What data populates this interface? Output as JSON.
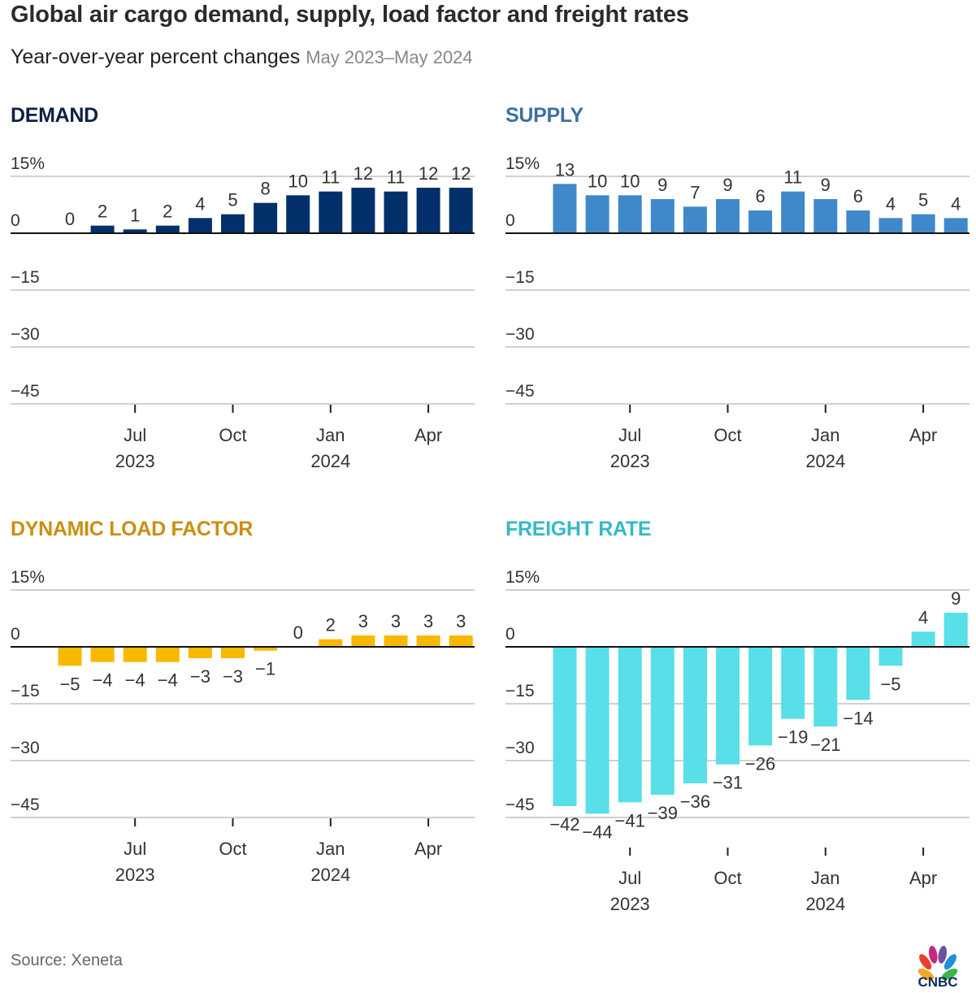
{
  "header": {
    "title": "Global air cargo demand, supply, load factor and freight rates",
    "subtitle": "Year-over-year percent changes",
    "date_range": "May 2023–May 2024"
  },
  "footer": {
    "source": "Source: Xeneta",
    "logo": "CNBC"
  },
  "chart_data": [
    {
      "type": "bar",
      "title": "DEMAND",
      "title_color": "#0d2244",
      "bar_color": "#03306b",
      "months": [
        "May 2023",
        "Jun 2023",
        "Jul 2023",
        "Aug 2023",
        "Sep 2023",
        "Oct 2023",
        "Nov 2023",
        "Dec 2023",
        "Jan 2024",
        "Feb 2024",
        "Mar 2024",
        "Apr 2024",
        "May 2024"
      ],
      "values": [
        0,
        2,
        1,
        2,
        4,
        5,
        8,
        10,
        11,
        12,
        11,
        12,
        12
      ],
      "yticks": [
        "15%",
        "0",
        "−15",
        "−30",
        "−45"
      ],
      "ytick_values": [
        15,
        0,
        -15,
        -30,
        -45
      ],
      "ylim": [
        -45,
        15
      ],
      "xticks": [
        {
          "label": "Jul",
          "year": "2023",
          "index": 2
        },
        {
          "label": "Oct",
          "year": "",
          "index": 5
        },
        {
          "label": "Jan",
          "year": "2024",
          "index": 8
        },
        {
          "label": "Apr",
          "year": "",
          "index": 11
        }
      ],
      "xlabel": "",
      "ylabel": "",
      "grid": true
    },
    {
      "type": "bar",
      "title": "SUPPLY",
      "title_color": "#3d6fa3",
      "bar_color": "#3f88c9",
      "months": [
        "May 2023",
        "Jun 2023",
        "Jul 2023",
        "Aug 2023",
        "Sep 2023",
        "Oct 2023",
        "Nov 2023",
        "Dec 2023",
        "Jan 2024",
        "Feb 2024",
        "Mar 2024",
        "Apr 2024",
        "May 2024"
      ],
      "values": [
        13,
        10,
        10,
        9,
        7,
        9,
        6,
        11,
        9,
        6,
        4,
        5,
        4
      ],
      "yticks": [
        "15%",
        "0",
        "−15",
        "−30",
        "−45"
      ],
      "ytick_values": [
        15,
        0,
        -15,
        -30,
        -45
      ],
      "ylim": [
        -45,
        15
      ],
      "xticks": [
        {
          "label": "Jul",
          "year": "2023",
          "index": 2
        },
        {
          "label": "Oct",
          "year": "",
          "index": 5
        },
        {
          "label": "Jan",
          "year": "2024",
          "index": 8
        },
        {
          "label": "Apr",
          "year": "",
          "index": 11
        }
      ],
      "xlabel": "",
      "ylabel": "",
      "grid": true
    },
    {
      "type": "bar",
      "title": "DYNAMIC LOAD FACTOR",
      "title_color": "#c98f10",
      "bar_color": "#f9b800",
      "months": [
        "May 2023",
        "Jun 2023",
        "Jul 2023",
        "Aug 2023",
        "Sep 2023",
        "Oct 2023",
        "Nov 2023",
        "Dec 2023",
        "Jan 2024",
        "Feb 2024",
        "Mar 2024",
        "Apr 2024",
        "May 2024"
      ],
      "values": [
        -5,
        -4,
        -4,
        -4,
        -3,
        -3,
        -1,
        0,
        2,
        3,
        3,
        3,
        3
      ],
      "yticks": [
        "15%",
        "0",
        "−15",
        "−30",
        "−45"
      ],
      "ytick_values": [
        15,
        0,
        -15,
        -30,
        -45
      ],
      "ylim": [
        -45,
        15
      ],
      "xticks": [
        {
          "label": "Jul",
          "year": "2023",
          "index": 2
        },
        {
          "label": "Oct",
          "year": "",
          "index": 5
        },
        {
          "label": "Jan",
          "year": "2024",
          "index": 8
        },
        {
          "label": "Apr",
          "year": "",
          "index": 11
        }
      ],
      "xlabel": "",
      "ylabel": "",
      "grid": true
    },
    {
      "type": "bar",
      "title": "FREIGHT RATE",
      "title_color": "#35b9c6",
      "bar_color": "#58dfe8",
      "months": [
        "May 2023",
        "Jun 2023",
        "Jul 2023",
        "Aug 2023",
        "Sep 2023",
        "Oct 2023",
        "Nov 2023",
        "Dec 2023",
        "Jan 2024",
        "Feb 2024",
        "Mar 2024",
        "Apr 2024",
        "May 2024"
      ],
      "values": [
        -42,
        -44,
        -41,
        -39,
        -36,
        -31,
        -26,
        -19,
        -21,
        -14,
        -5,
        4,
        9
      ],
      "yticks": [
        "15%",
        "0",
        "−15",
        "−30",
        "−45"
      ],
      "ytick_values": [
        15,
        0,
        -15,
        -30,
        -45
      ],
      "ylim": [
        -45,
        15
      ],
      "xticks": [
        {
          "label": "Jul",
          "year": "2023",
          "index": 2
        },
        {
          "label": "Oct",
          "year": "",
          "index": 5
        },
        {
          "label": "Jan",
          "year": "2024",
          "index": 8
        },
        {
          "label": "Apr",
          "year": "",
          "index": 11
        }
      ],
      "xlabel": "",
      "ylabel": "",
      "grid": true
    }
  ]
}
